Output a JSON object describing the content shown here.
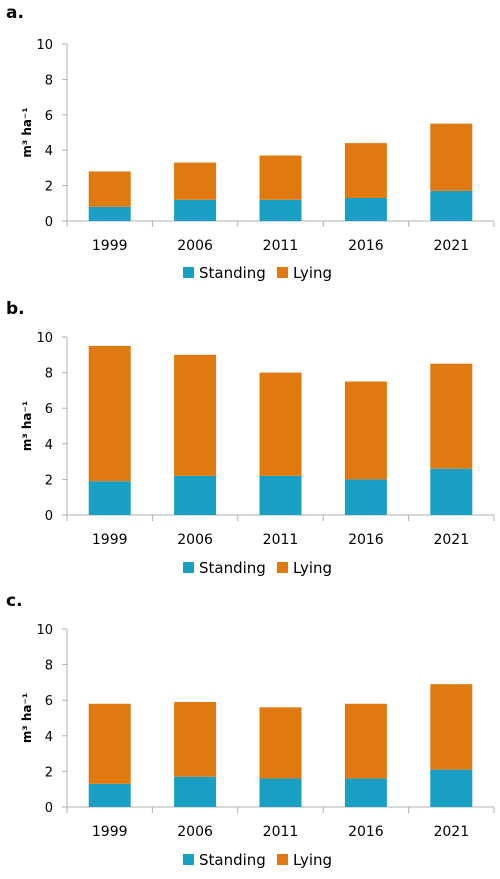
{
  "colors": {
    "standing": "#1a9fc4",
    "lying": "#e07a10",
    "axis": "#b0b0b0"
  },
  "chart_data": [
    {
      "type": "bar",
      "stacked": true,
      "panel": "a.",
      "categories": [
        "1999",
        "2006",
        "2011",
        "2016",
        "2021"
      ],
      "series": [
        {
          "name": "Standing",
          "values": [
            0.8,
            1.2,
            1.2,
            1.3,
            1.7
          ]
        },
        {
          "name": "Lying",
          "values": [
            2.0,
            2.1,
            2.5,
            3.1,
            3.8
          ]
        }
      ],
      "ylabel": "m³ ha⁻¹",
      "ylim": [
        0,
        10
      ],
      "yticks": [
        "0",
        "2",
        "4",
        "6",
        "8",
        "10"
      ],
      "legend_position": "bottom",
      "grid": false
    },
    {
      "type": "bar",
      "stacked": true,
      "panel": "b.",
      "categories": [
        "1999",
        "2006",
        "2011",
        "2016",
        "2021"
      ],
      "series": [
        {
          "name": "Standing",
          "values": [
            1.9,
            2.2,
            2.2,
            2.0,
            2.6
          ]
        },
        {
          "name": "Lying",
          "values": [
            7.6,
            6.8,
            5.8,
            5.5,
            5.9
          ]
        }
      ],
      "ylabel": "m³ ha⁻¹",
      "ylim": [
        0,
        10
      ],
      "yticks": [
        "0",
        "2",
        "4",
        "6",
        "8",
        "10"
      ],
      "legend_position": "bottom",
      "grid": false
    },
    {
      "type": "bar",
      "stacked": true,
      "panel": "c.",
      "categories": [
        "1999",
        "2006",
        "2011",
        "2016",
        "2021"
      ],
      "series": [
        {
          "name": "Standing",
          "values": [
            1.3,
            1.7,
            1.6,
            1.6,
            2.1
          ]
        },
        {
          "name": "Lying",
          "values": [
            4.5,
            4.2,
            4.0,
            4.2,
            4.8
          ]
        }
      ],
      "ylabel": "m³ ha⁻¹",
      "ylim": [
        0,
        10
      ],
      "yticks": [
        "0",
        "2",
        "4",
        "6",
        "8",
        "10"
      ],
      "legend_position": "bottom",
      "grid": false
    }
  ]
}
